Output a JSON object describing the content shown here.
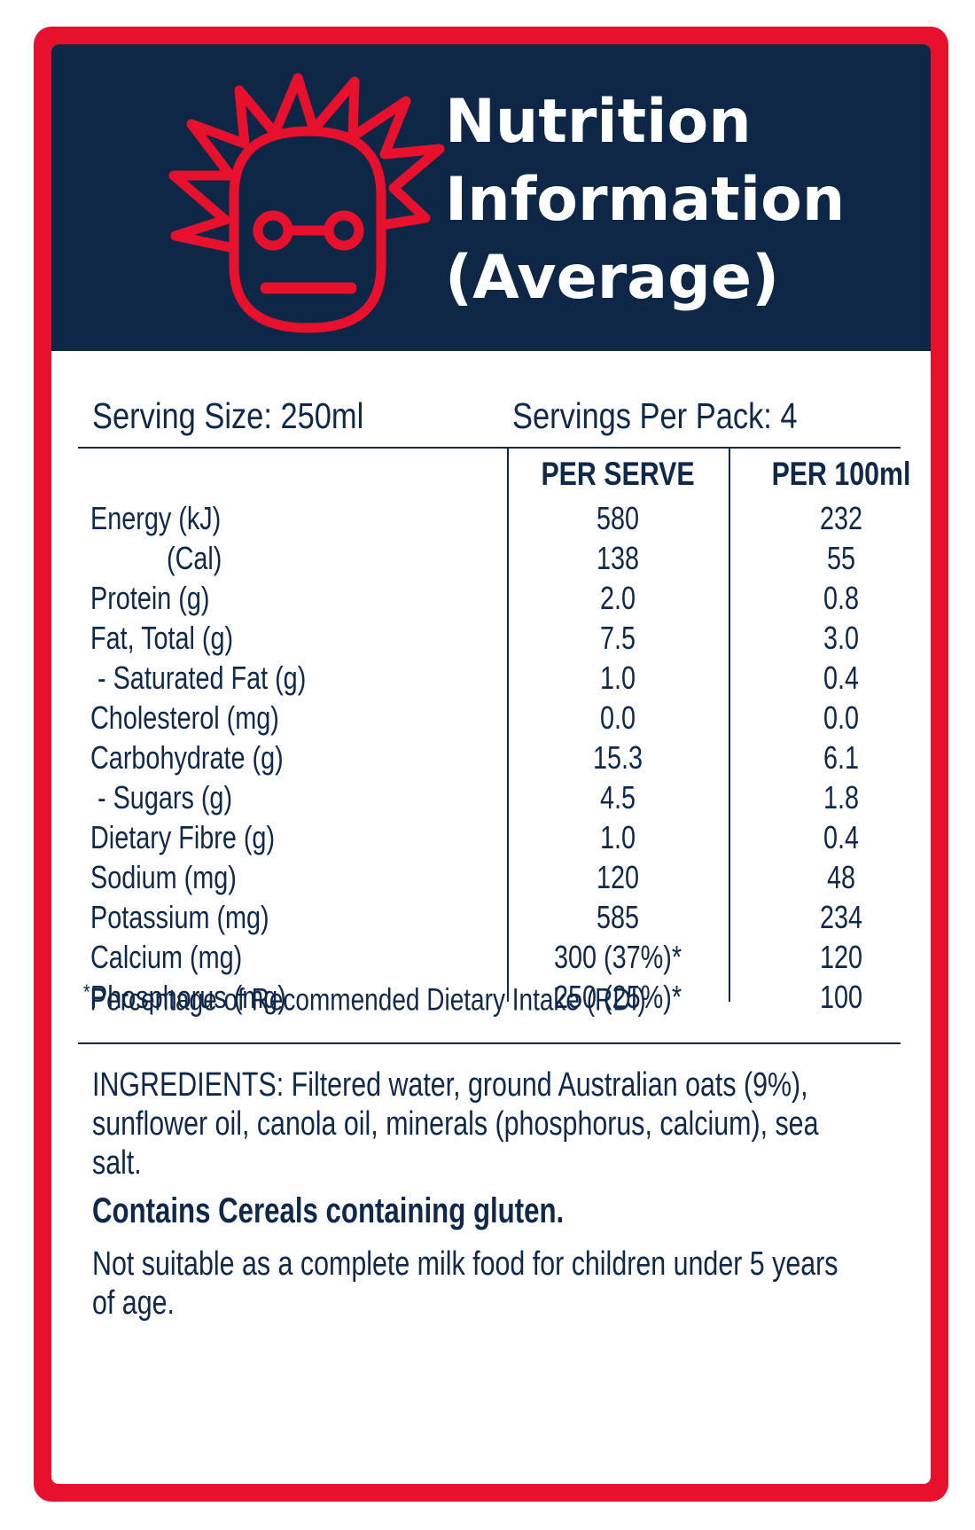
{
  "colors": {
    "border": "#e8112d",
    "header_bg": "#0f2747",
    "text": "#10284a",
    "logo": "#e8112d"
  },
  "header": {
    "logo_icon": "mad-professor-face-icon",
    "title_lines": [
      "Nutrition",
      "Information",
      "(Average)"
    ]
  },
  "serving": {
    "size": "Serving Size: 250ml",
    "per_pack": "Servings Per Pack: 4"
  },
  "columns": {
    "per_serve": "PER SERVE",
    "per_100ml": "PER 100ml"
  },
  "nutrients": [
    {
      "name": "Energy (kJ)",
      "per_serve": "580",
      "per_100ml": "232"
    },
    {
      "name": "(Cal)",
      "per_serve": "138",
      "per_100ml": "55"
    },
    {
      "name": "Protein (g)",
      "per_serve": "2.0",
      "per_100ml": "0.8"
    },
    {
      "name": "Fat, Total (g)",
      "per_serve": "7.5",
      "per_100ml": "3.0"
    },
    {
      "name": "- Saturated Fat (g)",
      "per_serve": "1.0",
      "per_100ml": "0.4"
    },
    {
      "name": "Cholesterol (mg)",
      "per_serve": "0.0",
      "per_100ml": "0.0"
    },
    {
      "name": "Carbohydrate (g)",
      "per_serve": "15.3",
      "per_100ml": "6.1"
    },
    {
      "name": "- Sugars (g)",
      "per_serve": "4.5",
      "per_100ml": "1.8"
    },
    {
      "name": "Dietary Fibre (g)",
      "per_serve": "1.0",
      "per_100ml": "0.4"
    },
    {
      "name": "Sodium (mg)",
      "per_serve": "120",
      "per_100ml": "48"
    },
    {
      "name": "Potassium (mg)",
      "per_serve": "585",
      "per_100ml": "234"
    },
    {
      "name": "Calcium (mg)",
      "per_serve": "300 (37%)*",
      "per_100ml": "120"
    },
    {
      "name": "Phosphorus (mg)",
      "per_serve": "250 (25%)*",
      "per_100ml": "100"
    }
  ],
  "footnote": {
    "mark": "*",
    "text": "Percentage of Recommended Dietary Intake (RDI)"
  },
  "ingredients": "INGREDIENTS: Filtered water, ground Australian oats (9%), sunflower oil, canola oil, minerals (phosphorus, calcium), sea salt.",
  "contains": "Contains Cereals containing gluten.",
  "notice": "Not suitable as a complete milk food for children under 5 years of age."
}
